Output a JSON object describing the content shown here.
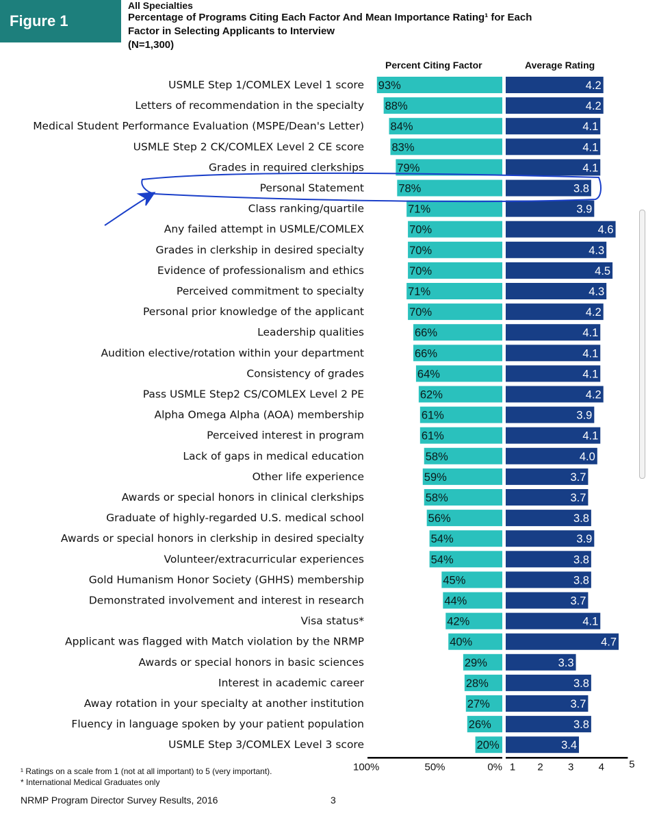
{
  "figure_label": "Figure 1",
  "subtitle": "All Specialties",
  "title_line1": "Percentage of Programs Citing Each Factor And Mean Importance Rating¹ for Each",
  "title_line2": "Factor in Selecting Applicants to Interview",
  "title_line3": "(N=1,300)",
  "footnote1": "¹ Ratings on a scale from 1 (not at all important) to 5 (very important).",
  "footnote2": "* International Medical Graduates only",
  "footer_source": "NRMP Program Director Survey Results, 2016",
  "page_number": "3",
  "colors": {
    "percent_bar": "#2ac1bd",
    "rating_bar": "#173e86",
    "badge": "#1d7f7c",
    "annotation": "#1a3fc9"
  },
  "chart_data": {
    "type": "bar",
    "title": "Percentage of Programs Citing Each Factor And Mean Importance Rating for Each Factor in Selecting Applicants to Interview",
    "categories": [
      "USMLE Step 1/COMLEX Level 1 score",
      "Letters of recommendation in the specialty",
      "Medical Student Performance Evaluation (MSPE/Dean's Letter)",
      "USMLE Step 2 CK/COMLEX Level 2 CE score",
      "Grades in required clerkships",
      "Personal Statement",
      "Class ranking/quartile",
      "Any failed attempt in USMLE/COMLEX",
      "Grades in clerkship in desired specialty",
      "Evidence of professionalism and ethics",
      "Perceived commitment to specialty",
      "Personal prior knowledge of the applicant",
      "Leadership qualities",
      "Audition elective/rotation within your department",
      "Consistency of grades",
      "Pass USMLE Step2 CS/COMLEX Level 2 PE",
      "Alpha Omega Alpha (AOA) membership",
      "Perceived interest in program",
      "Lack of gaps in medical education",
      "Other life experience",
      "Awards or special honors in clinical clerkships",
      "Graduate of highly-regarded U.S. medical school",
      "Awards or special honors in clerkship in desired specialty",
      "Volunteer/extracurricular experiences",
      "Gold Humanism Honor Society (GHHS) membership",
      "Demonstrated involvement and interest in research",
      "Visa status*",
      "Applicant was flagged with Match violation by the NRMP",
      "Awards or special honors in basic sciences",
      "Interest in academic career",
      "Away rotation in your specialty at another institution",
      "Fluency in language spoken by your patient population",
      "USMLE Step 3/COMLEX Level 3 score"
    ],
    "series": [
      {
        "name": "Percent Citing Factor",
        "values": [
          93,
          88,
          84,
          83,
          79,
          78,
          71,
          70,
          70,
          70,
          71,
          70,
          66,
          66,
          64,
          62,
          61,
          61,
          58,
          59,
          58,
          56,
          54,
          54,
          45,
          44,
          42,
          40,
          29,
          28,
          27,
          26,
          20
        ],
        "labels": [
          "93%",
          "88%",
          "84%",
          "83%",
          "79%",
          "78%",
          "71%",
          "70%",
          "70%",
          "70%",
          "71%",
          "70%",
          "66%",
          "66%",
          "64%",
          "62%",
          "61%",
          "61%",
          "58%",
          "59%",
          "58%",
          "56%",
          "54%",
          "54%",
          "45%",
          "44%",
          "42%",
          "40%",
          "29%",
          "28%",
          "27%",
          "26%",
          "20%"
        ]
      },
      {
        "name": "Average Rating",
        "values": [
          4.2,
          4.2,
          4.1,
          4.1,
          4.1,
          3.8,
          3.9,
          4.6,
          4.3,
          4.5,
          4.3,
          4.2,
          4.1,
          4.1,
          4.1,
          4.2,
          3.9,
          4.1,
          4.0,
          3.7,
          3.7,
          3.8,
          3.9,
          3.8,
          3.8,
          3.7,
          4.1,
          4.7,
          3.3,
          3.8,
          3.7,
          3.8,
          3.4
        ],
        "labels": [
          "4.2",
          "4.2",
          "4.1",
          "4.1",
          "4.1",
          "3.8",
          "3.9",
          "4.6",
          "4.3",
          "4.5",
          "4.3",
          "4.2",
          "4.1",
          "4.1",
          "4.1",
          "4.2",
          "3.9",
          "4.1",
          "4.0",
          "3.7",
          "3.7",
          "3.8",
          "3.9",
          "3.8",
          "3.8",
          "3.7",
          "4.1",
          "4.7",
          "3.3",
          "3.8",
          "3.7",
          "3.8",
          "3.4"
        ]
      }
    ],
    "percent_axis": {
      "ticks": [
        "100%",
        "50%",
        "0%"
      ],
      "range": [
        0,
        100
      ],
      "reversed": true
    },
    "rating_axis": {
      "ticks": [
        "1",
        "2",
        "3",
        "4",
        "5"
      ],
      "range": [
        1,
        5
      ]
    }
  }
}
